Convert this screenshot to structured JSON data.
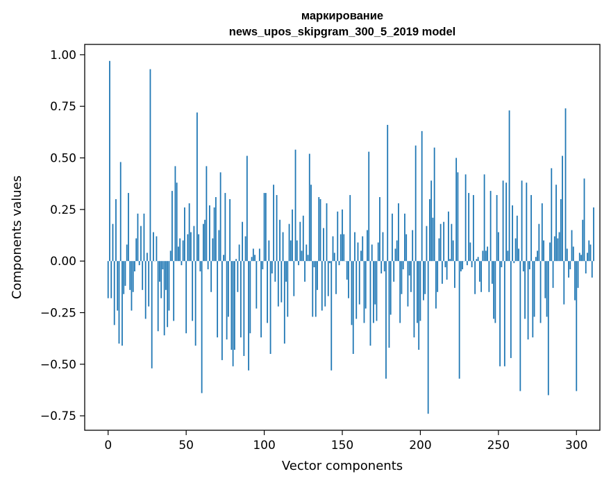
{
  "chart_data": {
    "type": "bar",
    "title": "маркирование\nnews_upos_skipgram_300_5_2019 model",
    "xlabel": "Vector components",
    "ylabel": "Components values",
    "xlim": [
      -15,
      315
    ],
    "ylim": [
      -0.82,
      1.05
    ],
    "xticks": [
      0,
      50,
      100,
      150,
      200,
      250,
      300
    ],
    "yticks": [
      -0.75,
      -0.5,
      -0.25,
      0.0,
      0.25,
      0.5,
      0.75,
      1.0
    ],
    "xtick_labels": [
      "0",
      "50",
      "100",
      "150",
      "200",
      "250",
      "300"
    ],
    "ytick_labels": [
      "−0.75",
      "−0.50",
      "−0.25",
      "0.00",
      "0.25",
      "0.50",
      "0.75",
      "1.00"
    ],
    "grid": false,
    "bar_color": "#1f77b4",
    "values": [
      -0.18,
      0.97,
      -0.18,
      0.18,
      -0.31,
      0.3,
      -0.24,
      -0.4,
      0.48,
      -0.41,
      -0.16,
      -0.12,
      0.08,
      0.33,
      -0.14,
      -0.24,
      -0.15,
      -0.05,
      0.11,
      0.23,
      -0.02,
      0.17,
      -0.14,
      0.23,
      -0.28,
      0.04,
      -0.22,
      0.93,
      -0.52,
      0.14,
      0.0,
      0.12,
      -0.34,
      -0.1,
      -0.18,
      -0.04,
      -0.36,
      -0.14,
      -0.32,
      -0.24,
      0.05,
      0.34,
      -0.29,
      0.46,
      0.38,
      0.07,
      0.11,
      -0.02,
      0.1,
      0.26,
      -0.35,
      0.13,
      0.28,
      0.14,
      -0.29,
      0.17,
      -0.41,
      0.72,
      0.13,
      -0.05,
      -0.64,
      0.18,
      0.2,
      0.46,
      -0.04,
      0.27,
      -0.15,
      0.11,
      0.26,
      0.31,
      -0.37,
      0.15,
      0.43,
      -0.48,
      0.03,
      0.33,
      -0.38,
      -0.27,
      0.3,
      -0.43,
      -0.51,
      -0.43,
      0.01,
      -0.15,
      0.08,
      -0.37,
      0.19,
      -0.46,
      0.12,
      0.51,
      -0.53,
      -0.35,
      0.02,
      0.06,
      0.03,
      -0.23,
      0.0,
      0.06,
      -0.37,
      -0.04,
      0.33,
      0.33,
      -0.3,
      0.1,
      -0.45,
      -0.06,
      0.37,
      -0.1,
      0.32,
      -0.22,
      0.2,
      -0.2,
      0.14,
      -0.4,
      -0.1,
      -0.27,
      0.18,
      0.1,
      0.25,
      -0.17,
      0.54,
      0.1,
      -0.02,
      0.19,
      0.05,
      0.22,
      -0.1,
      0.08,
      0.03,
      0.52,
      0.37,
      -0.27,
      -0.03,
      -0.27,
      -0.14,
      0.31,
      0.3,
      -0.24,
      0.16,
      -0.22,
      0.28,
      -0.17,
      -0.01,
      -0.53,
      0.12,
      0.04,
      -0.16,
      0.24,
      -0.02,
      0.13,
      0.25,
      0.13,
      0.0,
      -0.09,
      -0.18,
      0.32,
      -0.31,
      -0.45,
      0.14,
      -0.28,
      0.09,
      -0.21,
      0.05,
      0.12,
      -0.3,
      -0.23,
      0.15,
      0.53,
      -0.41,
      0.08,
      -0.3,
      -0.21,
      -0.29,
      0.09,
      0.31,
      -0.06,
      0.14,
      -0.05,
      -0.57,
      0.66,
      -0.42,
      -0.26,
      0.23,
      -0.1,
      0.06,
      0.1,
      0.28,
      -0.3,
      -0.16,
      -0.04,
      0.23,
      0.13,
      -0.22,
      -0.07,
      -0.15,
      0.15,
      -0.37,
      0.56,
      -0.3,
      -0.43,
      -0.29,
      0.63,
      -0.19,
      -0.16,
      0.17,
      -0.74,
      0.3,
      0.39,
      0.21,
      0.55,
      -0.23,
      -0.15,
      0.11,
      0.18,
      -0.11,
      0.19,
      -0.03,
      -0.09,
      0.24,
      0.01,
      0.18,
      0.1,
      -0.13,
      0.5,
      0.43,
      -0.57,
      -0.05,
      -0.04,
      0.0,
      0.42,
      -0.02,
      0.33,
      0.09,
      -0.03,
      0.32,
      -0.16,
      0.01,
      0.02,
      -0.1,
      -0.15,
      0.05,
      0.42,
      0.05,
      0.07,
      -0.15,
      0.34,
      -0.11,
      -0.28,
      -0.3,
      0.32,
      0.14,
      -0.51,
      -0.03,
      0.39,
      -0.51,
      0.38,
      0.05,
      0.73,
      -0.47,
      0.27,
      -0.01,
      0.11,
      0.22,
      0.06,
      -0.63,
      0.39,
      -0.05,
      -0.28,
      0.38,
      -0.38,
      -0.04,
      0.32,
      -0.37,
      -0.27,
      0.02,
      0.05,
      0.18,
      -0.3,
      0.28,
      0.1,
      -0.18,
      -0.27,
      -0.65,
      0.09,
      0.45,
      -0.13,
      0.12,
      0.37,
      0.11,
      0.14,
      0.3,
      0.51,
      -0.21,
      0.74,
      0.06,
      -0.08,
      -0.04,
      0.15,
      0.07,
      -0.19,
      -0.63,
      -0.13,
      0.04,
      0.03,
      0.2,
      0.4,
      -0.06,
      0.04,
      0.1,
      0.08,
      -0.08,
      0.26
    ]
  }
}
